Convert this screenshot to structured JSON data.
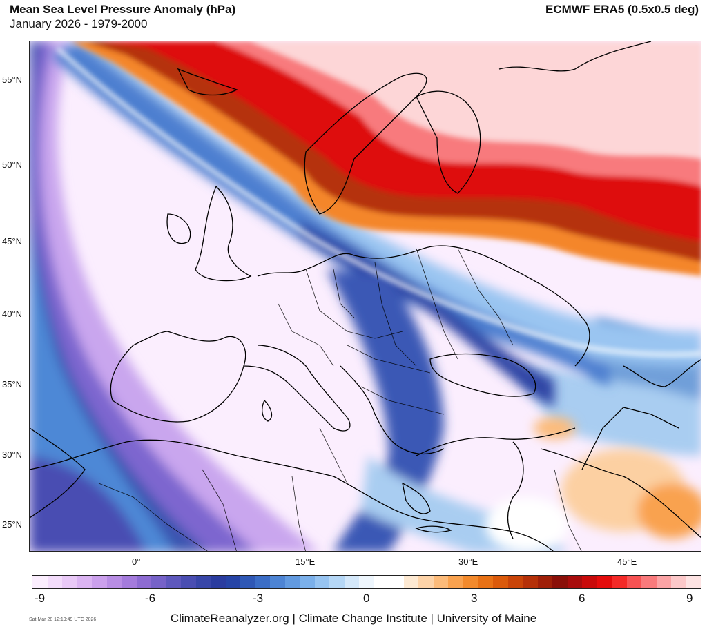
{
  "header": {
    "title": "Mean Sea Level Pressure Anomaly (hPa)",
    "subtitle": "January 2026 - 1979-2000",
    "source": "ECMWF ERA5 (0.5x0.5 deg)"
  },
  "axes": {
    "lat_labels": [
      "55°N",
      "50°N",
      "45°N",
      "40°N",
      "35°N",
      "30°N",
      "25°N"
    ],
    "lon_labels": [
      "0°",
      "15°E",
      "30°E",
      "45°E"
    ]
  },
  "colorbar": {
    "ticks": [
      "-9",
      "-6",
      "-3",
      "0",
      "3",
      "6",
      "9"
    ],
    "colors": [
      "#fbeefe",
      "#f3dcfb",
      "#e9c9f7",
      "#dbb4f2",
      "#cba0ec",
      "#b88de4",
      "#a47bdc",
      "#8d6bd2",
      "#7662c8",
      "#5e58bd",
      "#4a4eb2",
      "#3846a8",
      "#2a3c9f",
      "#2644a6",
      "#2f58b6",
      "#3b6dc6",
      "#4d84d4",
      "#629ae0",
      "#7bb0ea",
      "#97c4f1",
      "#b5d7f6",
      "#d4e8fa",
      "#eef6fd",
      "#ffffff",
      "#ffffff",
      "#fde9d2",
      "#fdd3a8",
      "#fcbb7a",
      "#f9a24f",
      "#f38a2c",
      "#e87115",
      "#db5a0b",
      "#c94408",
      "#b53008",
      "#9f1f08",
      "#8a0f08",
      "#a80c0c",
      "#c80a0a",
      "#e40c0c",
      "#f42a28",
      "#f75253",
      "#f97a7c",
      "#fba3a5",
      "#fcc8c9",
      "#fde3e3"
    ]
  },
  "footer": {
    "timestamp": "Sat Mar 28 12:19:49 UTC 2026",
    "credit": "ClimateReanalyzer.org | Climate Change Institute | University of Maine"
  }
}
